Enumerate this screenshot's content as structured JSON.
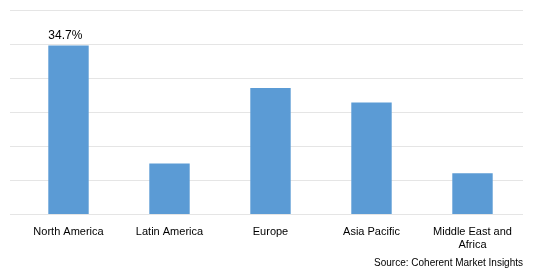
{
  "chart_data": {
    "type": "bar",
    "categories": [
      "North America",
      "Latin America",
      "Europe",
      "Asia Pacific",
      "Middle East and\nAfrica"
    ],
    "values": [
      34.7,
      10.5,
      26.0,
      23.0,
      8.5
    ],
    "color": "#5b9bd5",
    "ylim": [
      0,
      42
    ],
    "yticks": [
      0,
      7,
      14,
      21,
      28,
      35,
      42
    ],
    "grid": true,
    "tick_labels": "x",
    "annotations": [
      {
        "text": "34.7%",
        "x": "North America",
        "y": 34.7
      }
    ],
    "source": "Source: Coherent Market Insights"
  }
}
